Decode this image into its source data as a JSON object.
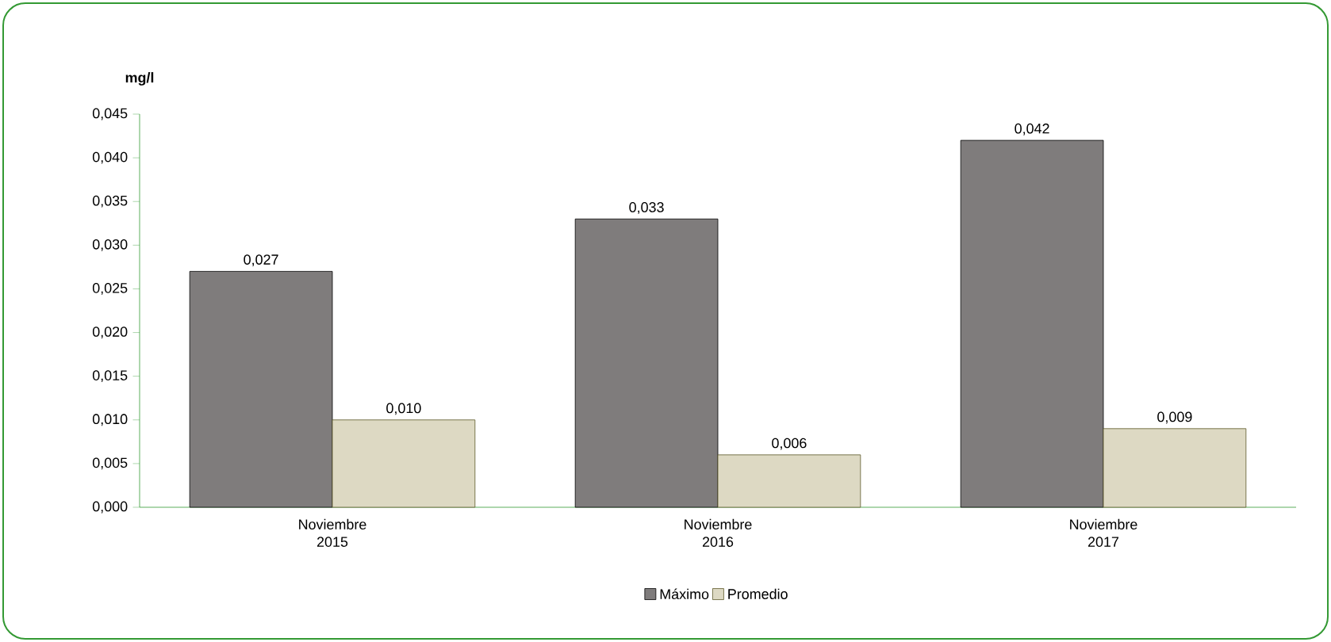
{
  "chart_data": {
    "type": "bar",
    "ylabel": "mg/l",
    "categories": [
      "Noviembre 2015",
      "Noviembre 2016",
      "Noviembre 2017"
    ],
    "series": [
      {
        "name": "Máximo",
        "color": "#7f7c7c",
        "values": [
          0.027,
          0.033,
          0.042
        ],
        "value_labels": [
          "0,027",
          "0,033",
          "0,042"
        ]
      },
      {
        "name": "Promedio",
        "color": "#ddd9c3",
        "values": [
          0.01,
          0.006,
          0.009
        ],
        "value_labels": [
          "0,010",
          "0,006",
          "0,009"
        ]
      }
    ],
    "ylim": [
      0,
      0.045
    ],
    "yticks": [
      {
        "value": 0,
        "label": "0,000"
      },
      {
        "value": 0.005,
        "label": "0,005"
      },
      {
        "value": 0.01,
        "label": "0,010"
      },
      {
        "value": 0.015,
        "label": "0,015"
      },
      {
        "value": 0.02,
        "label": "0,020"
      },
      {
        "value": 0.025,
        "label": "0,025"
      },
      {
        "value": 0.03,
        "label": "0,030"
      },
      {
        "value": 0.035,
        "label": "0,035"
      },
      {
        "value": 0.04,
        "label": "0,040"
      },
      {
        "value": 0.045,
        "label": "0,045"
      }
    ],
    "grid": false,
    "legend": "bottom"
  }
}
